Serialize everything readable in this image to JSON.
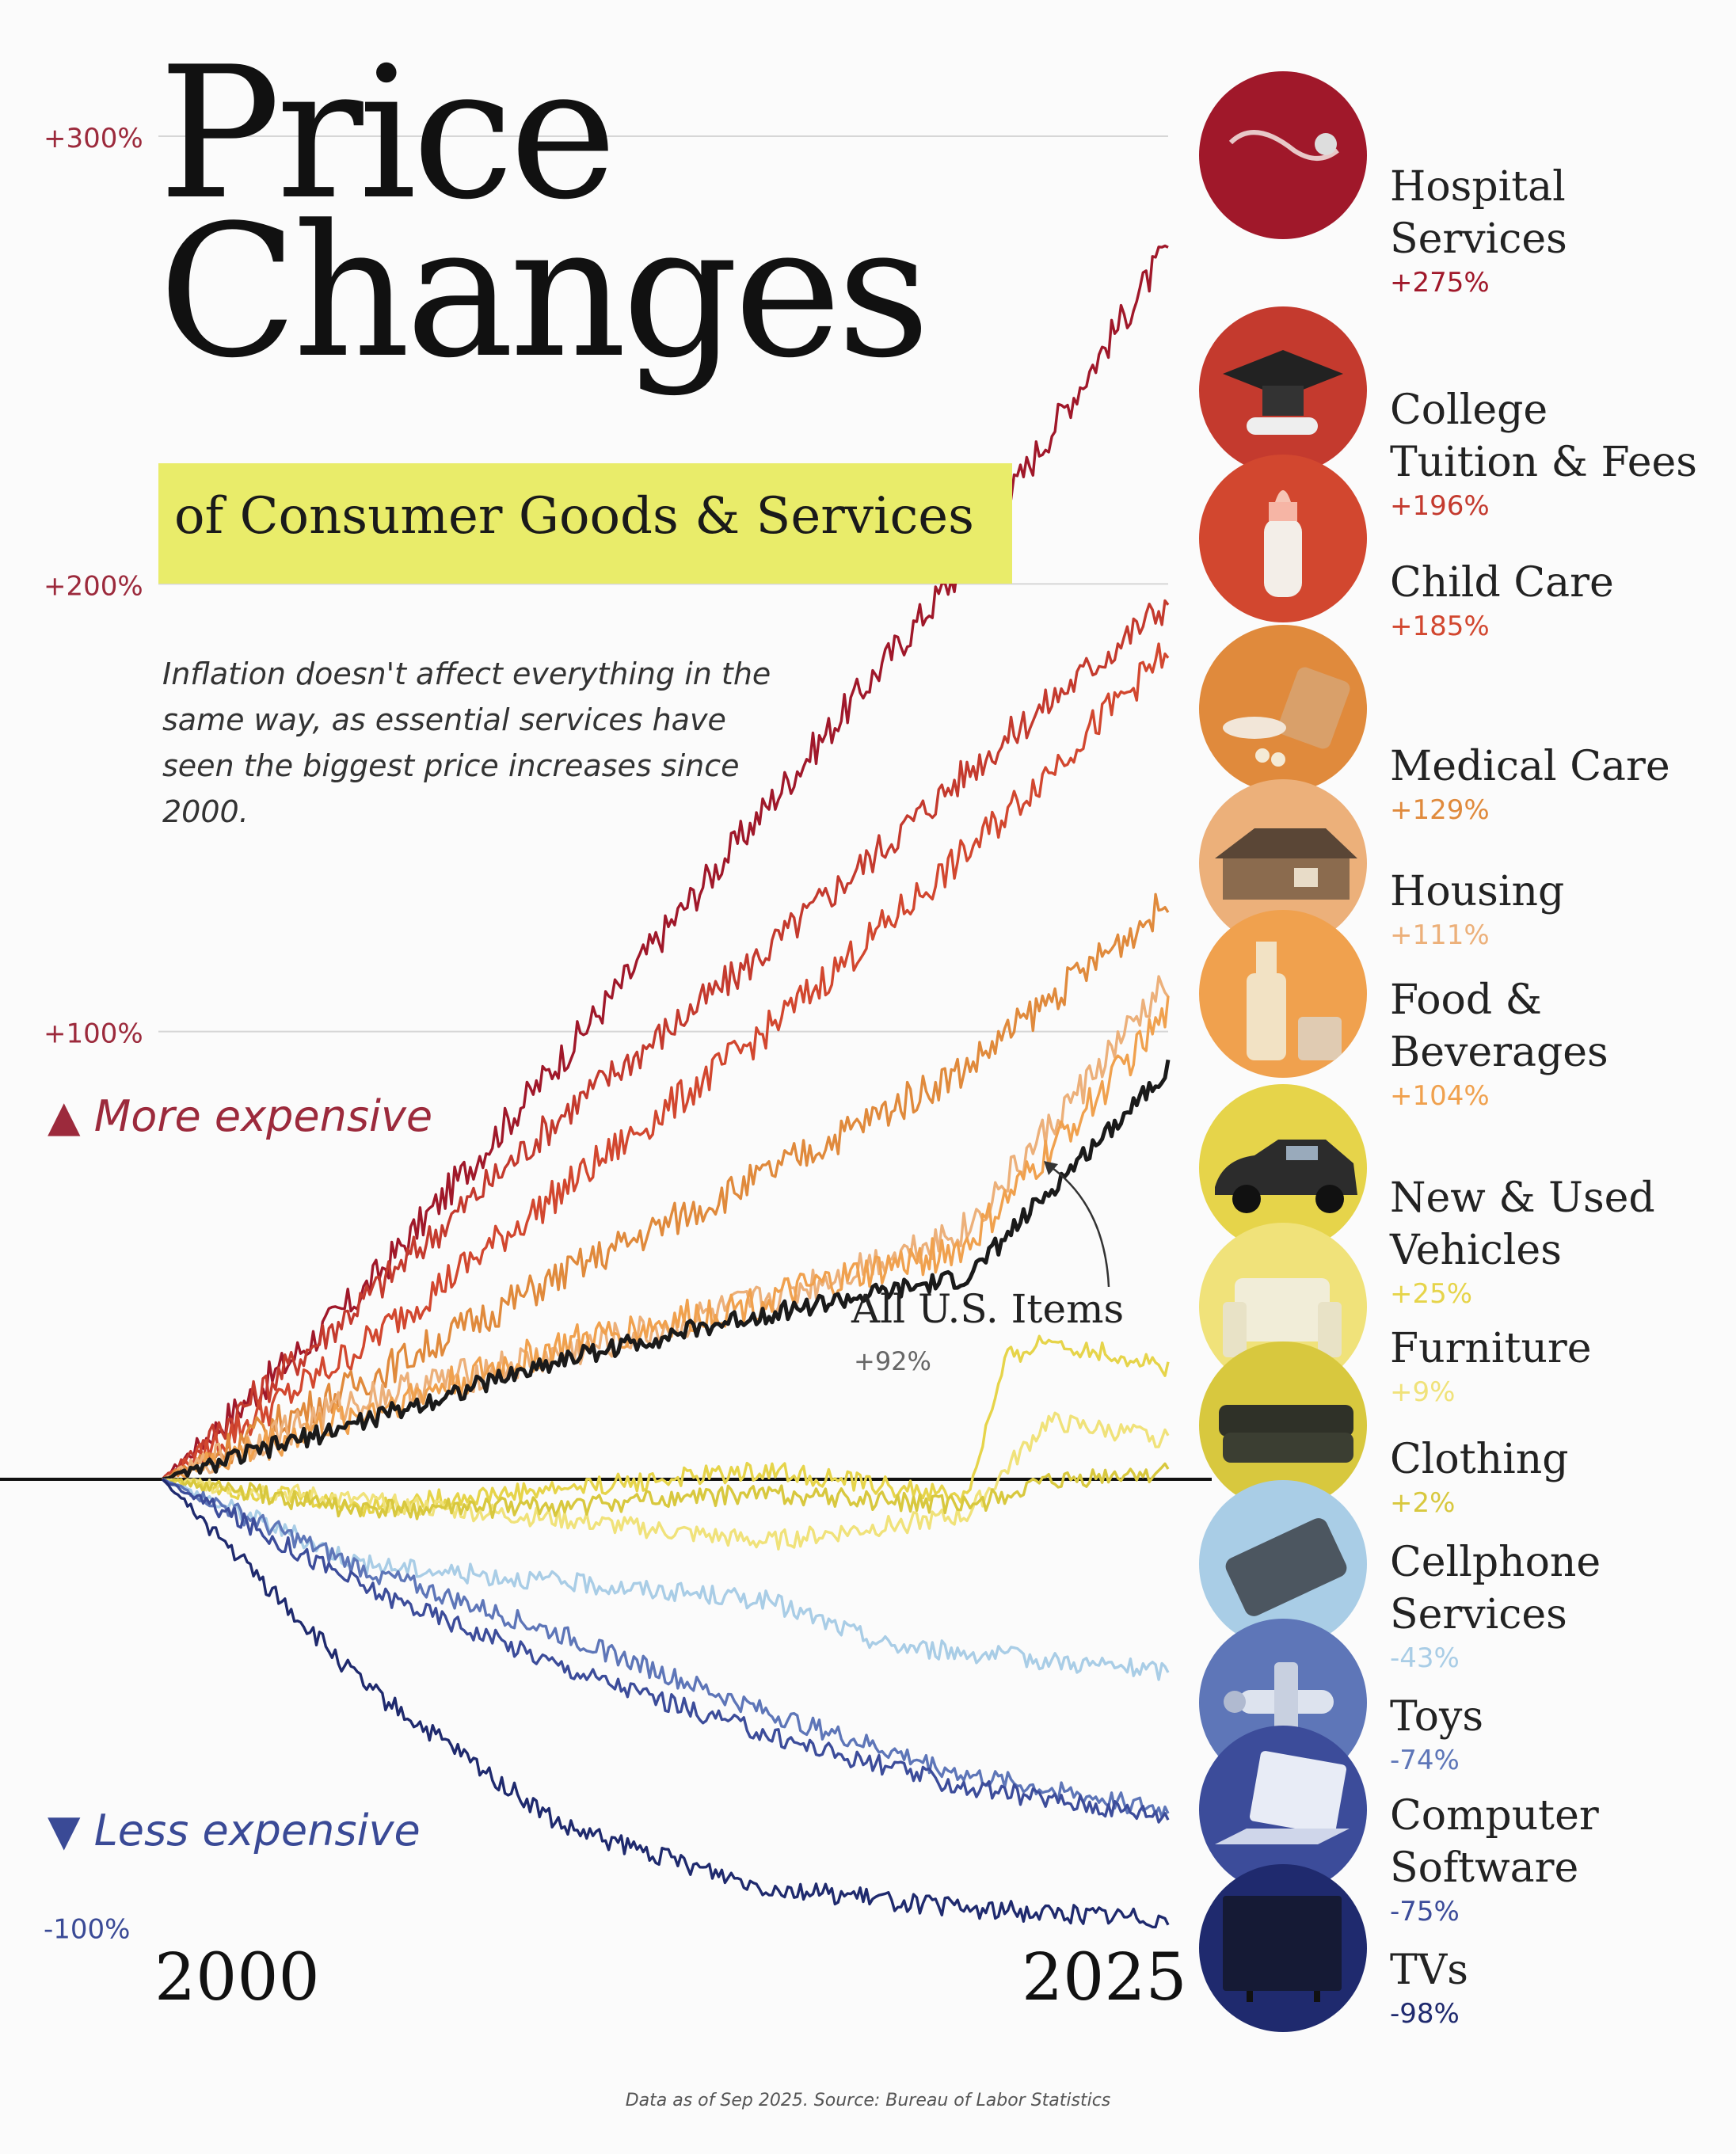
{
  "header": {
    "title_line1": "Price",
    "title_line2": "Changes",
    "subtitle": "of Consumer Goods & Services",
    "description": "Inflation doesn't affect everything in the same way, as essential services have seen the biggest price increases since 2000."
  },
  "labels": {
    "more_expensive": "More expensive",
    "less_expensive": "Less expensive",
    "source": "Data as of Sep 2025. Source: Bureau of Labor Statistics"
  },
  "colors": {
    "highlight": "#e9ec6a",
    "more_expensive": "#9c2a3c",
    "less_expensive": "#3a4a96"
  },
  "chart_data": {
    "type": "line",
    "title": "Price Changes",
    "subtitle": "of Consumer Goods & Services",
    "x_range": [
      2000,
      2025
    ],
    "x_tick_labels": [
      "2000",
      "2025"
    ],
    "ylim": [
      -100,
      300
    ],
    "y_ticks": [
      {
        "value": 300,
        "label": "+300%"
      },
      {
        "value": 200,
        "label": "+200%"
      },
      {
        "value": 100,
        "label": "+100%"
      },
      {
        "value": -100,
        "label": "-100%"
      }
    ],
    "baseline": 0,
    "annotation": {
      "label": "All U.S. Items",
      "value_label": "+92%"
    },
    "series": [
      {
        "name": "Hospital Services",
        "value_label": "+275%",
        "final": 275,
        "color": "#a0182a",
        "icon": "stethoscope-icon",
        "path": [
          [
            2000,
            0
          ],
          [
            2005,
            42
          ],
          [
            2010,
            95
          ],
          [
            2015,
            150
          ],
          [
            2020,
            205
          ],
          [
            2025,
            275
          ]
        ]
      },
      {
        "name": "College Tuition & Fees",
        "value_label": "+196%",
        "final": 196,
        "color": "#c43a2e",
        "icon": "graduation-cap-icon",
        "path": [
          [
            2000,
            0
          ],
          [
            2005,
            40
          ],
          [
            2010,
            82
          ],
          [
            2015,
            118
          ],
          [
            2020,
            158
          ],
          [
            2025,
            196
          ]
        ]
      },
      {
        "name": "Child Care",
        "value_label": "+185%",
        "final": 185,
        "color": "#d2472f",
        "icon": "baby-bottle-icon",
        "path": [
          [
            2000,
            0
          ],
          [
            2005,
            30
          ],
          [
            2010,
            65
          ],
          [
            2015,
            100
          ],
          [
            2020,
            140
          ],
          [
            2025,
            185
          ]
        ]
      },
      {
        "name": "Medical Care",
        "value_label": "+129%",
        "final": 129,
        "color": "#e08a3c",
        "icon": "pill-bottle-icon",
        "path": [
          [
            2000,
            0
          ],
          [
            2005,
            22
          ],
          [
            2010,
            46
          ],
          [
            2015,
            68
          ],
          [
            2020,
            92
          ],
          [
            2025,
            129
          ]
        ]
      },
      {
        "name": "Housing",
        "value_label": "+111%",
        "final": 111,
        "color": "#ecb07a",
        "icon": "house-icon",
        "path": [
          [
            2000,
            0
          ],
          [
            2005,
            18
          ],
          [
            2010,
            28
          ],
          [
            2015,
            40
          ],
          [
            2020,
            56
          ],
          [
            2025,
            111
          ]
        ]
      },
      {
        "name": "Food & Beverages",
        "value_label": "+104%",
        "final": 104,
        "color": "#f0a14e",
        "icon": "bottle-icon",
        "path": [
          [
            2000,
            0
          ],
          [
            2005,
            15
          ],
          [
            2010,
            30
          ],
          [
            2015,
            40
          ],
          [
            2020,
            52
          ],
          [
            2025,
            104
          ]
        ]
      },
      {
        "name": "All U.S. Items",
        "value_label": "+92%",
        "final": 92,
        "color": "#1a1a1a",
        "icon": "",
        "path": [
          [
            2000,
            0
          ],
          [
            2005,
            13
          ],
          [
            2010,
            27
          ],
          [
            2015,
            37
          ],
          [
            2020,
            45
          ],
          [
            2025,
            92
          ]
        ]
      },
      {
        "name": "New & Used Vehicles",
        "value_label": "+25%",
        "final": 25,
        "color": "#e6d44a",
        "icon": "car-icon",
        "path": [
          [
            2000,
            0
          ],
          [
            2005,
            -6
          ],
          [
            2010,
            -2
          ],
          [
            2015,
            2
          ],
          [
            2020,
            -4
          ],
          [
            2021,
            27
          ],
          [
            2022,
            31
          ],
          [
            2025,
            25
          ]
        ]
      },
      {
        "name": "Furniture",
        "value_label": "+9%",
        "final": 9,
        "color": "#f0e27a",
        "icon": "armchair-icon",
        "path": [
          [
            2000,
            0
          ],
          [
            2005,
            -5
          ],
          [
            2010,
            -9
          ],
          [
            2015,
            -14
          ],
          [
            2020,
            -8
          ],
          [
            2022,
            13
          ],
          [
            2025,
            9
          ]
        ]
      },
      {
        "name": "Clothing",
        "value_label": "+2%",
        "final": 2,
        "color": "#d8c83e",
        "icon": "folded-clothes-icon",
        "path": [
          [
            2000,
            0
          ],
          [
            2005,
            -7
          ],
          [
            2010,
            -6
          ],
          [
            2015,
            -3
          ],
          [
            2020,
            -6
          ],
          [
            2022,
            -1
          ],
          [
            2025,
            2
          ]
        ]
      },
      {
        "name": "Cellphone Services",
        "value_label": "-43%",
        "final": -43,
        "color": "#a9cde6",
        "icon": "phone-icon",
        "path": [
          [
            2000,
            0
          ],
          [
            2005,
            -19
          ],
          [
            2010,
            -23
          ],
          [
            2015,
            -27
          ],
          [
            2018,
            -37
          ],
          [
            2025,
            -43
          ]
        ]
      },
      {
        "name": "Toys",
        "value_label": "-74%",
        "final": -74,
        "color": "#5e76b8",
        "icon": "toy-plane-icon",
        "path": [
          [
            2000,
            0
          ],
          [
            2005,
            -20
          ],
          [
            2010,
            -35
          ],
          [
            2015,
            -52
          ],
          [
            2020,
            -66
          ],
          [
            2025,
            -74
          ]
        ]
      },
      {
        "name": "Computer Software",
        "value_label": "-75%",
        "final": -75,
        "color": "#3c4c9a",
        "icon": "laptop-icon",
        "path": [
          [
            2000,
            0
          ],
          [
            2005,
            -24
          ],
          [
            2010,
            -42
          ],
          [
            2015,
            -57
          ],
          [
            2020,
            -69
          ],
          [
            2025,
            -75
          ]
        ]
      },
      {
        "name": "TVs",
        "value_label": "-98%",
        "final": -98,
        "color": "#1f2a6e",
        "icon": "tv-icon",
        "path": [
          [
            2000,
            0
          ],
          [
            2005,
            -46
          ],
          [
            2010,
            -78
          ],
          [
            2015,
            -91
          ],
          [
            2020,
            -96
          ],
          [
            2025,
            -98
          ]
        ]
      }
    ]
  }
}
